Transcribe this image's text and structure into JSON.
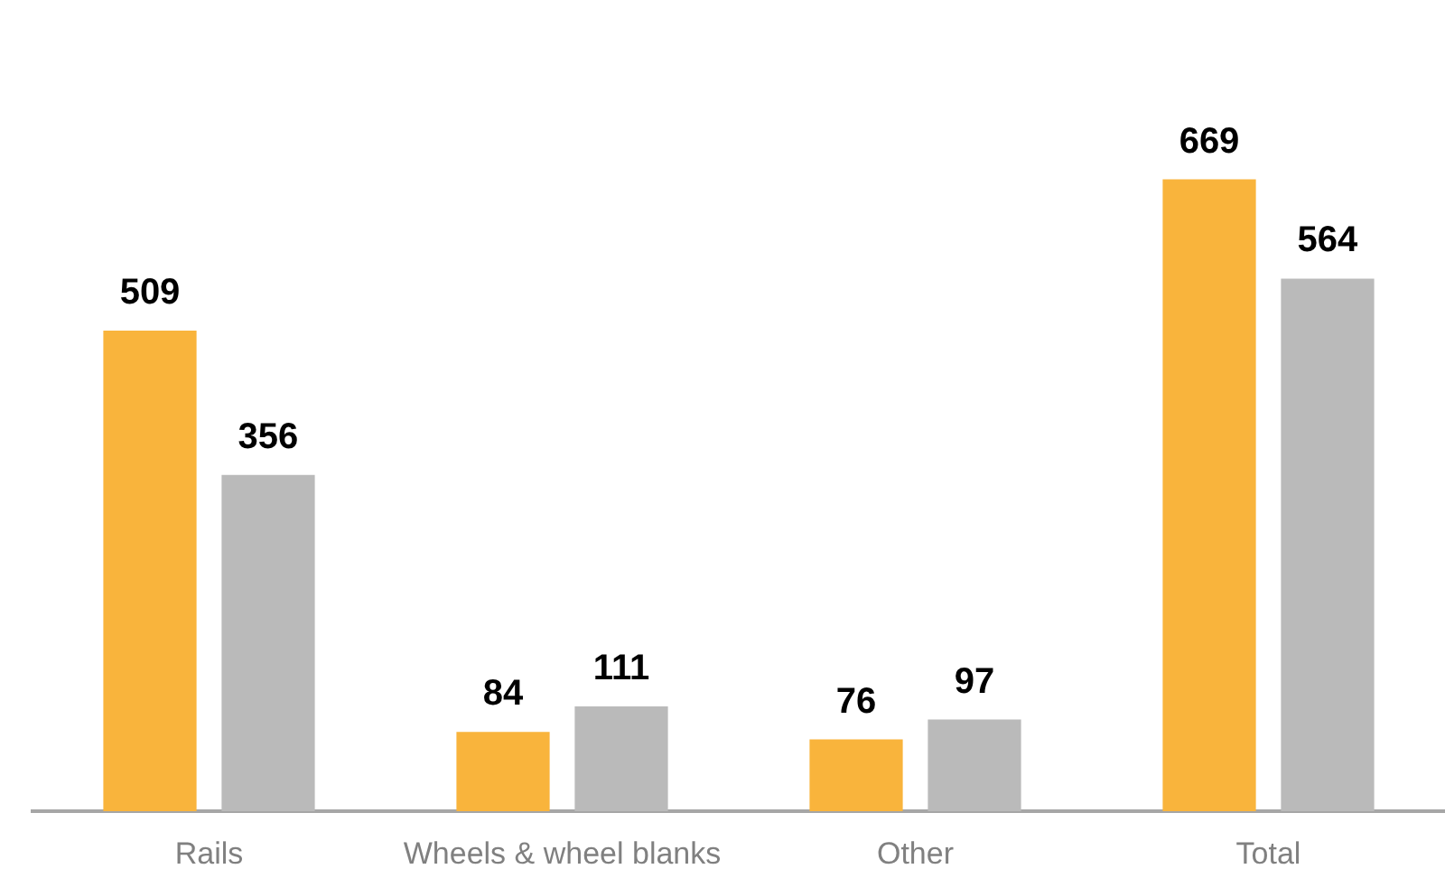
{
  "chart_data": {
    "type": "bar",
    "categories": [
      "Rails",
      "Wheels & wheel blanks",
      "Other",
      "Total"
    ],
    "series": [
      {
        "color": "#f9b43c",
        "values": [
          509,
          84,
          76,
          669
        ]
      },
      {
        "color": "#bababa",
        "values": [
          356,
          111,
          97,
          564
        ]
      }
    ],
    "data_labels": true,
    "legend": false
  }
}
